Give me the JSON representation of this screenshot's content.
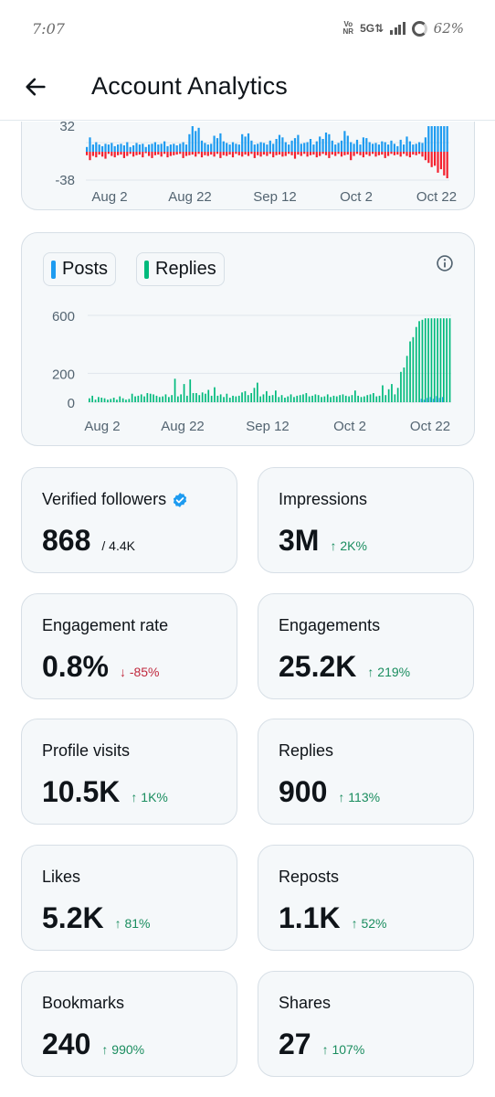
{
  "status_bar": {
    "time": "7:07",
    "volte": [
      "Vo",
      "NR"
    ],
    "network": "5G⇅",
    "battery": "62%"
  },
  "header": {
    "title": "Account Analytics"
  },
  "chart_top": {
    "y_ticks": [
      "32",
      "-38"
    ],
    "x_ticks": [
      "Aug 2",
      "Aug 22",
      "Sep 12",
      "Oct 2",
      "Oct 22"
    ],
    "colors": {
      "positive": "#1d9bf0",
      "negative": "#f4212e"
    }
  },
  "chart_posts_replies": {
    "legend": [
      {
        "label": "Posts",
        "color": "#1d9bf0"
      },
      {
        "label": "Replies",
        "color": "#00ba7c"
      }
    ],
    "y_ticks": [
      "600",
      "200",
      "0"
    ],
    "x_ticks": [
      "Aug 2",
      "Aug 22",
      "Sep 12",
      "Oct 2",
      "Oct 22"
    ]
  },
  "chart_data": [
    {
      "type": "bar",
      "title": "",
      "series": [
        {
          "name": "",
          "values": [
            6,
            18,
            9,
            12,
            9,
            7,
            10,
            9,
            11,
            7,
            9,
            10,
            8,
            12,
            6,
            8,
            11,
            9,
            10,
            6,
            9,
            10,
            12,
            9,
            10,
            13,
            7,
            9,
            10,
            8,
            10,
            12,
            9,
            22,
            32,
            26,
            30,
            14,
            11,
            9,
            10,
            20,
            17,
            23,
            13,
            11,
            9,
            12,
            10,
            9,
            22,
            19,
            23,
            14,
            9,
            10,
            12,
            11,
            9,
            14,
            10,
            16,
            21,
            18,
            12,
            9,
            14,
            17,
            21,
            10,
            11,
            12,
            16,
            9,
            13,
            19,
            16,
            24,
            22,
            14,
            9,
            11,
            14,
            26,
            20,
            12,
            10,
            15,
            9,
            18,
            17,
            12,
            10,
            11,
            9,
            13,
            12,
            9,
            14,
            10,
            7,
            15,
            9,
            19,
            13,
            9,
            10,
            12,
            11,
            18,
            32,
            32,
            32,
            32,
            32,
            32,
            32
          ]
        },
        {
          "name": "",
          "values": [
            -5,
            -12,
            -6,
            -8,
            -4,
            -7,
            -10,
            -3,
            -6,
            -8,
            -5,
            -4,
            -9,
            -6,
            -3,
            -7,
            -5,
            -4,
            -8,
            -2,
            -6,
            -9,
            -5,
            -4,
            -7,
            -3,
            -8,
            -6,
            -5,
            -4,
            -3,
            -9,
            -6,
            -5,
            -4,
            -7,
            -3,
            -8,
            -5,
            -6,
            -4,
            -7,
            -3,
            -9,
            -5,
            -6,
            -4,
            -8,
            -3,
            -5,
            -7,
            -4,
            -6,
            -3,
            -9,
            -5,
            -7,
            -4,
            -6,
            -3,
            -8,
            -5,
            -4,
            -7,
            -6,
            -3,
            -5,
            -10,
            -4,
            -6,
            -3,
            -7,
            -5,
            -4,
            -8,
            -6,
            -3,
            -5,
            -9,
            -4,
            -6,
            -3,
            -7,
            -5,
            -4,
            -12,
            -6,
            -3,
            -5,
            -8,
            -4,
            -6,
            -3,
            -7,
            -5,
            -4,
            -9,
            -6,
            -3,
            -5,
            -4,
            -7,
            -3,
            -6,
            -8,
            -4,
            -5,
            -3,
            -7,
            -12,
            -16,
            -22,
            -20,
            -30,
            -25,
            -34,
            -38
          ]
        }
      ],
      "ylim": [
        -38,
        32
      ]
    },
    {
      "type": "bar",
      "title": "",
      "series": [
        {
          "name": "Posts",
          "values": [
            0,
            0,
            0,
            0,
            0,
            0,
            0,
            0,
            0,
            0,
            0,
            0,
            0,
            0,
            0,
            0,
            0,
            0,
            0,
            0,
            0,
            0,
            0,
            0,
            0,
            0,
            0,
            0,
            0,
            0,
            0,
            0,
            0,
            0,
            0,
            0,
            0,
            0,
            0,
            0,
            0,
            0,
            0,
            0,
            0,
            0,
            0,
            0,
            0,
            0,
            0,
            0,
            0,
            0,
            0,
            0,
            0,
            0,
            0,
            0,
            0,
            0,
            0,
            0,
            0,
            0,
            0,
            0,
            0,
            0,
            0,
            0,
            0,
            0,
            0,
            0,
            0,
            0,
            0,
            0,
            0,
            0,
            0,
            0,
            0,
            0,
            0,
            0,
            0,
            0,
            0,
            0,
            0,
            0,
            0,
            0,
            0,
            0,
            0,
            0,
            0,
            0,
            0,
            0,
            0,
            0,
            0,
            0,
            0,
            8,
            6,
            10,
            12,
            8,
            14,
            10,
            12
          ]
        },
        {
          "name": "Replies",
          "values": [
            30,
            50,
            20,
            40,
            35,
            30,
            20,
            25,
            35,
            20,
            45,
            30,
            20,
            25,
            65,
            45,
            50,
            60,
            45,
            70,
            65,
            60,
            50,
            40,
            45,
            60,
            40,
            55,
            180,
            45,
            60,
            140,
            50,
            175,
            70,
            70,
            55,
            75,
            65,
            95,
            50,
            115,
            50,
            60,
            40,
            65,
            35,
            50,
            45,
            50,
            75,
            85,
            55,
            70,
            110,
            150,
            45,
            60,
            85,
            50,
            55,
            90,
            40,
            55,
            35,
            45,
            60,
            40,
            50,
            55,
            60,
            70,
            45,
            50,
            60,
            55,
            40,
            45,
            60,
            40,
            50,
            45,
            55,
            60,
            50,
            45,
            55,
            90,
            50,
            40,
            45,
            55,
            60,
            70,
            45,
            50,
            130,
            55,
            100,
            140,
            60,
            110,
            210,
            240,
            320,
            420,
            450,
            520,
            560,
            570,
            580,
            580,
            580,
            580,
            580,
            580,
            580,
            580,
            580
          ]
        }
      ],
      "ylim": [
        0,
        600
      ]
    }
  ],
  "stats": [
    {
      "label": "Verified followers",
      "value": "868",
      "sub": "/ 4.4K",
      "verified": true
    },
    {
      "label": "Impressions",
      "value": "3M",
      "change": "↑ 2K%",
      "direction": "up"
    },
    {
      "label": "Engagement rate",
      "value": "0.8%",
      "change": "↓ -85%",
      "direction": "down"
    },
    {
      "label": "Engagements",
      "value": "25.2K",
      "change": "↑ 219%",
      "direction": "up"
    },
    {
      "label": "Profile visits",
      "value": "10.5K",
      "change": "↑ 1K%",
      "direction": "up"
    },
    {
      "label": "Replies",
      "value": "900",
      "change": "↑ 113%",
      "direction": "up"
    },
    {
      "label": "Likes",
      "value": "5.2K",
      "change": "↑ 81%",
      "direction": "up"
    },
    {
      "label": "Reposts",
      "value": "1.1K",
      "change": "↑ 52%",
      "direction": "up"
    },
    {
      "label": "Bookmarks",
      "value": "240",
      "change": "↑ 990%",
      "direction": "up"
    },
    {
      "label": "Shares",
      "value": "27",
      "change": "↑ 107%",
      "direction": "up"
    }
  ],
  "colors": {
    "accent_blue": "#1d9bf0",
    "green": "#00ba7c",
    "red": "#f4212e",
    "up_text": "#1a8d5f",
    "down_text": "#c0283d"
  }
}
